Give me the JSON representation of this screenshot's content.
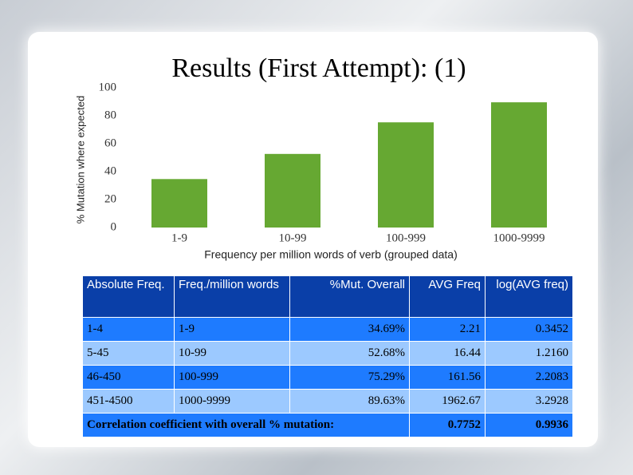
{
  "chart_data": {
    "type": "bar",
    "title": "Results (First Attempt): (1)",
    "x_label": "Frequency per million words of verb (grouped data)",
    "y_label": "% Mutation where expected",
    "categories": [
      "1-9",
      "10-99",
      "100-999",
      "1000-9999"
    ],
    "values": [
      34.69,
      52.68,
      75.29,
      89.63
    ],
    "color": "#66a832",
    "ylim": [
      0,
      100
    ],
    "yticks": [
      0,
      20,
      40,
      60,
      80,
      100
    ],
    "grid": false
  },
  "table": {
    "header": [
      "Absolute Freq.",
      "Freq./million words",
      "%Mut. Overall",
      "AVG Freq",
      "log(AVG freq)"
    ],
    "rows": [
      [
        "1-4",
        "1-9",
        "34.69%",
        "2.21",
        "0.3452"
      ],
      [
        "5-45",
        "10-99",
        "52.68%",
        "16.44",
        "1.2160"
      ],
      [
        "46-450",
        "100-999",
        "75.29%",
        "161.56",
        "2.2083"
      ],
      [
        "451-4500",
        "1000-9999",
        "89.63%",
        "1962.67",
        "3.2928"
      ]
    ],
    "footer": {
      "label": "Correlation coefficient with overall % mutation:",
      "values": [
        "0.7752",
        "0.9936"
      ]
    }
  }
}
